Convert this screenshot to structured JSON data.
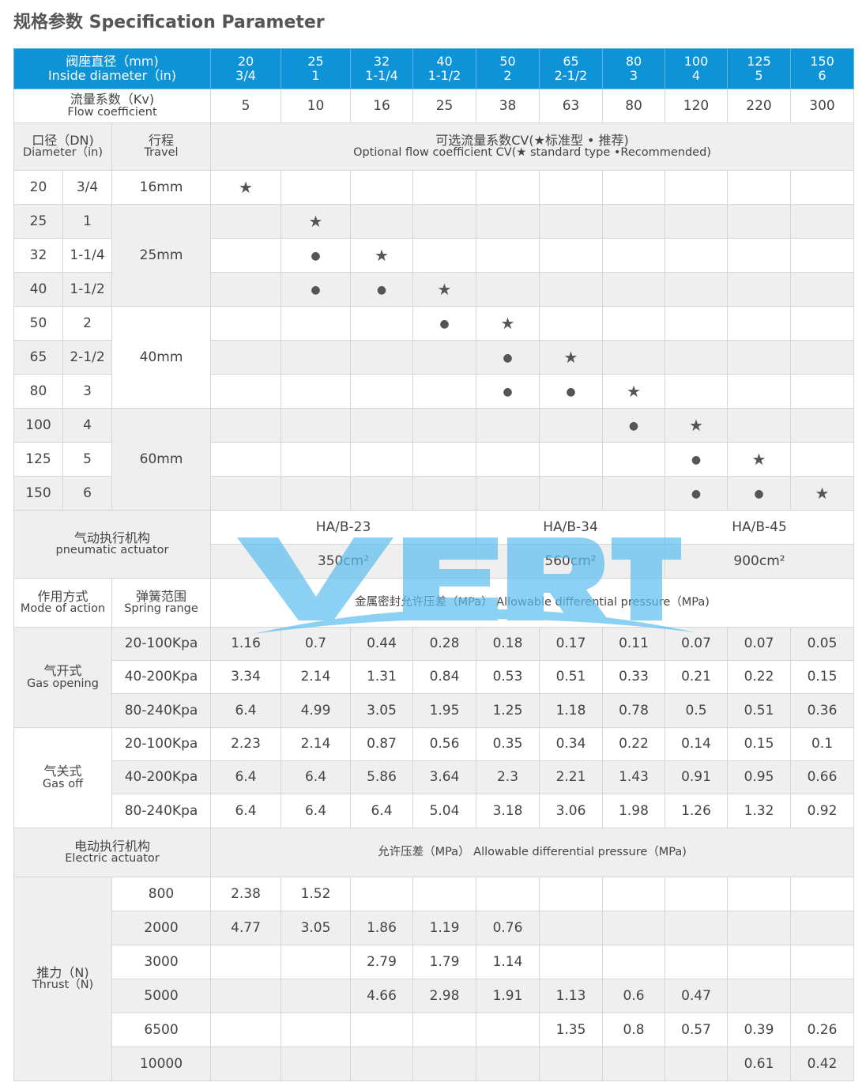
{
  "title": "规格参数 Specification Parameter",
  "colors": {
    "header": "#0e94d6",
    "stripe": "#efefef",
    "watermark": "#5bbef0"
  },
  "watermark_logo": "VERT",
  "header": {
    "label_cn": "阀座直径（mm)",
    "label_en": "Inside diameter（in)",
    "sizes": [
      [
        "20",
        "3/4"
      ],
      [
        "25",
        "1"
      ],
      [
        "32",
        "1-1/4"
      ],
      [
        "40",
        "1-1/2"
      ],
      [
        "50",
        "2"
      ],
      [
        "65",
        "2-1/2"
      ],
      [
        "80",
        "3"
      ],
      [
        "100",
        "4"
      ],
      [
        "125",
        "5"
      ],
      [
        "150",
        "6"
      ]
    ]
  },
  "kv": {
    "label_cn": "流量系数（Kv)",
    "label_en": "Flow coefficient",
    "values": [
      "5",
      "10",
      "16",
      "25",
      "38",
      "63",
      "80",
      "120",
      "220",
      "300"
    ]
  },
  "cv_header": {
    "dn_cn": "口径（DN)",
    "dn_en": "Diameter（in)",
    "travel_cn": "行程",
    "travel_en": "Travel",
    "title_cn": "可选流量系数CV(★标准型  • 推荐)",
    "title_en": "Optional flow coefficient CV(★ standard type  •Recommended)"
  },
  "cv_rows": [
    {
      "dn": "20",
      "in": "3/4",
      "marks": [
        "star",
        "",
        "",
        "",
        "",
        "",
        "",
        "",
        "",
        ""
      ]
    },
    {
      "dn": "25",
      "in": "1",
      "marks": [
        "",
        "star",
        "",
        "",
        "",
        "",
        "",
        "",
        "",
        ""
      ]
    },
    {
      "dn": "32",
      "in": "1-1/4",
      "marks": [
        "",
        "dot",
        "star",
        "",
        "",
        "",
        "",
        "",
        "",
        ""
      ]
    },
    {
      "dn": "40",
      "in": "1-1/2",
      "marks": [
        "",
        "dot",
        "dot",
        "star",
        "",
        "",
        "",
        "",
        "",
        ""
      ]
    },
    {
      "dn": "50",
      "in": "2",
      "marks": [
        "",
        "",
        "",
        "dot",
        "star",
        "",
        "",
        "",
        "",
        ""
      ]
    },
    {
      "dn": "65",
      "in": "2-1/2",
      "marks": [
        "",
        "",
        "",
        "",
        "dot",
        "star",
        "",
        "",
        "",
        ""
      ]
    },
    {
      "dn": "80",
      "in": "3",
      "marks": [
        "",
        "",
        "",
        "",
        "dot",
        "dot",
        "star",
        "",
        "",
        ""
      ]
    },
    {
      "dn": "100",
      "in": "4",
      "marks": [
        "",
        "",
        "",
        "",
        "",
        "",
        "dot",
        "star",
        "",
        ""
      ]
    },
    {
      "dn": "125",
      "in": "5",
      "marks": [
        "",
        "",
        "",
        "",
        "",
        "",
        "",
        "dot",
        "star",
        ""
      ]
    },
    {
      "dn": "150",
      "in": "6",
      "marks": [
        "",
        "",
        "",
        "",
        "",
        "",
        "",
        "dot",
        "dot",
        "star"
      ]
    }
  ],
  "travels": [
    "16mm",
    "25mm",
    "40mm",
    "60mm"
  ],
  "pneumatic": {
    "label_cn": "气动执行机构",
    "label_en": "pneumatic actuator",
    "models": [
      "HA/B-23",
      "HA/B-34",
      "HA/B-45"
    ],
    "areas": [
      "350cm²",
      "560cm²",
      "900cm²"
    ]
  },
  "pressure_header": {
    "mode_cn": "作用方式",
    "mode_en": "Mode of action",
    "spring_cn": "弹簧范围",
    "spring_en": "Spring range",
    "title": "金属密封允许压差（MPa） Allowable differential pressure（MPa)"
  },
  "gas_opening": {
    "label_cn": "气开式",
    "label_en": "Gas opening",
    "rows": [
      {
        "range": "20-100Kpa",
        "values": [
          "1.16",
          "0.7",
          "0.44",
          "0.28",
          "0.18",
          "0.17",
          "0.11",
          "0.07",
          "0.07",
          "0.05"
        ]
      },
      {
        "range": "40-200Kpa",
        "values": [
          "3.34",
          "2.14",
          "1.31",
          "0.84",
          "0.53",
          "0.51",
          "0.33",
          "0.21",
          "0.22",
          "0.15"
        ]
      },
      {
        "range": "80-240Kpa",
        "values": [
          "6.4",
          "4.99",
          "3.05",
          "1.95",
          "1.25",
          "1.18",
          "0.78",
          "0.5",
          "0.51",
          "0.36"
        ]
      }
    ]
  },
  "gas_off": {
    "label_cn": "气关式",
    "label_en": "Gas off",
    "rows": [
      {
        "range": "20-100Kpa",
        "values": [
          "2.23",
          "2.14",
          "0.87",
          "0.56",
          "0.35",
          "0.34",
          "0.22",
          "0.14",
          "0.15",
          "0.1"
        ]
      },
      {
        "range": "40-200Kpa",
        "values": [
          "6.4",
          "6.4",
          "5.86",
          "3.64",
          "2.3",
          "2.21",
          "1.43",
          "0.91",
          "0.95",
          "0.66"
        ]
      },
      {
        "range": "80-240Kpa",
        "values": [
          "6.4",
          "6.4",
          "6.4",
          "5.04",
          "3.18",
          "3.06",
          "1.98",
          "1.26",
          "1.32",
          "0.92"
        ]
      }
    ]
  },
  "electric": {
    "label_cn": "电动执行机构",
    "label_en": "Electric actuator",
    "title": "允许压差（MPa） Allowable differential pressure（MPa)",
    "thrust_cn": "推力（N)",
    "thrust_en": "Thrust（N)",
    "rows": [
      {
        "thrust": "800",
        "values": [
          "2.38",
          "1.52",
          "",
          "",
          "",
          "",
          "",
          "",
          "",
          ""
        ]
      },
      {
        "thrust": "2000",
        "values": [
          "4.77",
          "3.05",
          "1.86",
          "1.19",
          "0.76",
          "",
          "",
          "",
          "",
          ""
        ]
      },
      {
        "thrust": "3000",
        "values": [
          "",
          "",
          "2.79",
          "1.79",
          "1.14",
          "",
          "",
          "",
          "",
          ""
        ]
      },
      {
        "thrust": "5000",
        "values": [
          "",
          "",
          "4.66",
          "2.98",
          "1.91",
          "1.13",
          "0.6",
          "0.47",
          "",
          ""
        ]
      },
      {
        "thrust": "6500",
        "values": [
          "",
          "",
          "",
          "",
          "",
          "1.35",
          "0.8",
          "0.57",
          "0.39",
          "0.26"
        ]
      },
      {
        "thrust": "10000",
        "values": [
          "",
          "",
          "",
          "",
          "",
          "",
          "",
          "",
          "0.61",
          "0.42"
        ]
      }
    ]
  }
}
